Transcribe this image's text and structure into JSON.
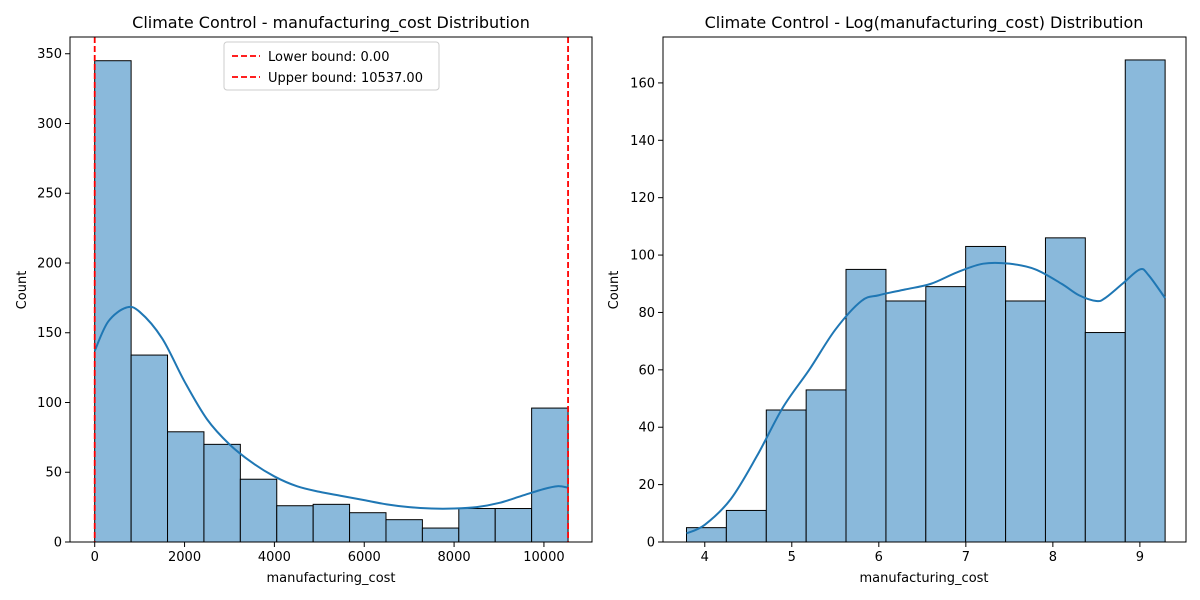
{
  "chart_data": [
    {
      "type": "bar",
      "title": "Climate Control - manufacturing_cost Distribution",
      "xlabel": "manufacturing_cost",
      "ylabel": "Count",
      "xlim": [
        -550,
        11070
      ],
      "ylim": [
        0,
        362
      ],
      "xticks": [
        0,
        2000,
        4000,
        6000,
        8000,
        10000
      ],
      "yticks": [
        0,
        50,
        100,
        150,
        200,
        250,
        300,
        350
      ],
      "bin_edges": [
        0,
        810.5,
        1621,
        2431.5,
        3242,
        4052.5,
        4863,
        5673.5,
        6484,
        7294.5,
        8105,
        8915.5,
        9726,
        10537
      ],
      "values": [
        345,
        134,
        79,
        70,
        45,
        26,
        27,
        21,
        16,
        10,
        24,
        24,
        96
      ],
      "kde": {
        "x": [
          0,
          300,
          700,
          1000,
          1500,
          2000,
          2500,
          3000,
          3500,
          4000,
          4500,
          5000,
          5500,
          6000,
          6500,
          7000,
          7500,
          8000,
          8500,
          9000,
          9500,
          10000,
          10300,
          10537
        ],
        "y": [
          137,
          158,
          168,
          165,
          146,
          115,
          88,
          70,
          57,
          47,
          40,
          36,
          33,
          30,
          27,
          25,
          24,
          24,
          25,
          28,
          33,
          38,
          40,
          39
        ]
      },
      "lines": [
        {
          "label": "Lower bound: 0.00",
          "x": 0,
          "color": "#ff0000"
        },
        {
          "label": "Upper bound: 10537.00",
          "x": 10537,
          "color": "#ff0000"
        }
      ],
      "legend_position": "top-center",
      "bar_color": "#8ab9db",
      "kde_color": "#1f77b4"
    },
    {
      "type": "bar",
      "title": "Climate Control - Log(manufacturing_cost) Distribution",
      "xlabel": "manufacturing_cost",
      "ylabel": "Count",
      "xlim": [
        3.52,
        9.53
      ],
      "ylim": [
        0,
        176
      ],
      "xticks": [
        4,
        5,
        6,
        7,
        8,
        9
      ],
      "yticks": [
        0,
        20,
        40,
        60,
        80,
        100,
        120,
        140,
        160
      ],
      "bin_edges": [
        3.79,
        4.248,
        4.707,
        5.165,
        5.623,
        6.082,
        6.54,
        6.998,
        7.457,
        7.915,
        8.373,
        8.832,
        9.29
      ],
      "values": [
        5,
        11,
        46,
        53,
        95,
        84,
        89,
        103,
        84,
        106,
        73,
        168
      ],
      "kde": {
        "x": [
          3.79,
          4.0,
          4.3,
          4.6,
          4.9,
          5.2,
          5.5,
          5.8,
          6.0,
          6.3,
          6.6,
          6.9,
          7.2,
          7.5,
          7.8,
          8.1,
          8.3,
          8.5,
          8.6,
          8.8,
          9.0,
          9.1,
          9.29
        ],
        "y": [
          3,
          6,
          15,
          30,
          47,
          60,
          74,
          84,
          86,
          88,
          90,
          94,
          97,
          97,
          95,
          90,
          86,
          84,
          85,
          90,
          95,
          93,
          85
        ]
      },
      "bar_color": "#8ab9db",
      "kde_color": "#1f77b4"
    }
  ]
}
